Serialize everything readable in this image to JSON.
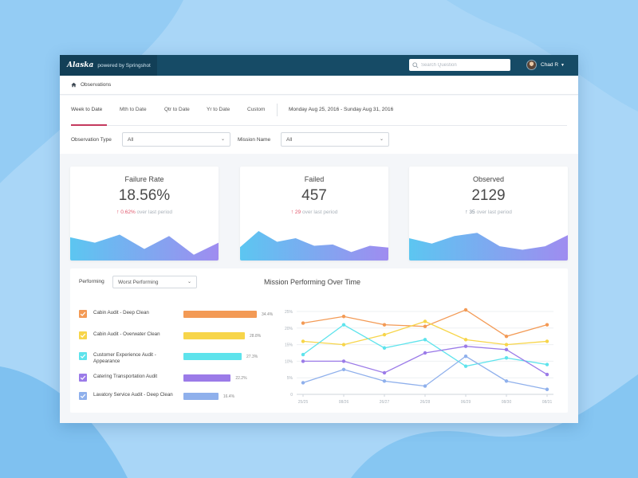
{
  "colors": {
    "background": "#a9d6f7",
    "topbar": "#164b66",
    "accent": "#c43a5e"
  },
  "topbar": {
    "logo": "Alaska",
    "powered_by": "powered by Springshot",
    "search_placeholder": "Search Question",
    "user_name": "Chad R"
  },
  "breadcrumb": {
    "label": "Observations",
    "icon": "home-icon"
  },
  "tabs": [
    {
      "label": "Week to Date"
    },
    {
      "label": "Mth to Date"
    },
    {
      "label": "Qtr to Date"
    },
    {
      "label": "Yr to Date"
    },
    {
      "label": "Custom"
    }
  ],
  "date_range": "Monday Aug 25, 2016 - Sunday Aug 31, 2016",
  "filters": {
    "observation_type_label": "Observation Type",
    "observation_type_value": "All",
    "mission_name_label": "Mission Name",
    "mission_name_value": "All"
  },
  "kpis": [
    {
      "title": "Failure Rate",
      "value": "18.56%",
      "change": "0.62%",
      "direction": "up",
      "change_color": "#e0566b",
      "suffix": "over last period",
      "spark": [
        0.52,
        0.4,
        0.58,
        0.26,
        0.55,
        0.13,
        0.4
      ]
    },
    {
      "title": "Failed",
      "value": "457",
      "change": "29",
      "direction": "up",
      "change_color": "#e0566b",
      "suffix": "over last period",
      "spark": [
        0.3,
        0.66,
        0.42,
        0.5,
        0.33,
        0.36,
        0.19,
        0.33,
        0.29
      ]
    },
    {
      "title": "Observed",
      "value": "2129",
      "change": "35",
      "direction": "up",
      "change_color": "#7a8693",
      "suffix": "over last period",
      "spark": [
        0.5,
        0.38,
        0.55,
        0.62,
        0.32,
        0.24,
        0.32,
        0.57
      ]
    }
  ],
  "performing": {
    "label": "Performing",
    "select_value": "Worst Performing"
  },
  "missions": [
    {
      "label": "Cabin Audit - Deep Clean",
      "value": "34.4%",
      "pct": 34.4,
      "color": "#f39a55"
    },
    {
      "label": "Cabin Audit - Overwater Clean",
      "value": "28.8%",
      "pct": 28.8,
      "color": "#f7d54a"
    },
    {
      "label": "Customer Experience Audit - Appearance",
      "value": "27.3%",
      "pct": 27.3,
      "color": "#5ee3ec"
    },
    {
      "label": "Catering Transportation Audit",
      "value": "22.2%",
      "pct": 22.2,
      "color": "#9b7be8"
    },
    {
      "label": "Lavatory Service Audit - Deep Clean",
      "value": "16.4%",
      "pct": 16.4,
      "color": "#8fb0ec"
    }
  ],
  "chart_data": {
    "type": "line",
    "title": "Mission Performing Over Time",
    "x": [
      "25/25",
      "08/26",
      "26/27",
      "26/28",
      "06/29",
      "08/30",
      "08/31"
    ],
    "yticks": [
      "0",
      "5%",
      "10%",
      "15%",
      "20%",
      "25%"
    ],
    "ylim": [
      0,
      25
    ],
    "grid": true,
    "series": [
      {
        "name": "Cabin Audit - Deep Clean",
        "color": "#f39a55",
        "values": [
          21.5,
          23.5,
          21,
          20.5,
          25.5,
          17.5,
          21
        ]
      },
      {
        "name": "Cabin Audit - Overwater Clean",
        "color": "#f7d54a",
        "values": [
          16,
          15,
          18,
          22,
          16.5,
          15,
          16
        ]
      },
      {
        "name": "Customer Experience Audit - Appearance",
        "color": "#5ee3ec",
        "values": [
          12,
          21,
          14,
          16.5,
          8.5,
          11,
          9
        ]
      },
      {
        "name": "Catering Transportation Audit",
        "color": "#9b7be8",
        "values": [
          10,
          10,
          6.5,
          12.5,
          14.5,
          13.5,
          6
        ]
      },
      {
        "name": "Lavatory Service Audit - Deep Clean",
        "color": "#8fb0ec",
        "values": [
          3.5,
          7.5,
          4,
          2.5,
          11.5,
          4,
          1.5
        ]
      }
    ]
  }
}
